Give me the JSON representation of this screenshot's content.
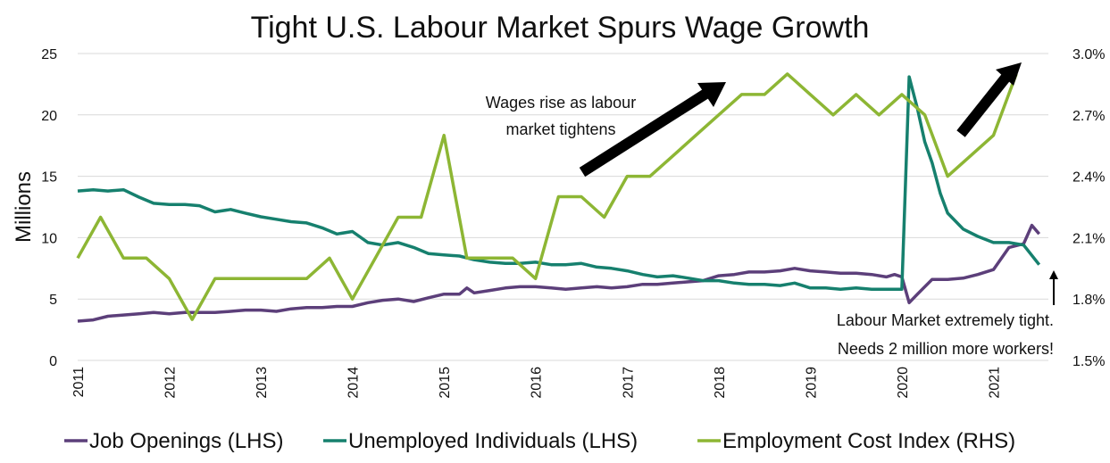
{
  "chart_data": {
    "type": "line",
    "title": "Tight U.S. Labour Market Spurs Wage Growth",
    "ylabel": "Millions",
    "ylim": [
      0,
      25
    ],
    "y2lim": [
      1.5,
      3.0
    ],
    "xlim": [
      2011,
      2021.6
    ],
    "grid": true,
    "yticks": [
      "0",
      "5",
      "10",
      "15",
      "20",
      "25"
    ],
    "y2ticks": [
      "1.5%",
      "1.8%",
      "2.1%",
      "2.4%",
      "2.7%",
      "3.0%"
    ],
    "xticks": [
      "2011",
      "2012",
      "2013",
      "2014",
      "2015",
      "2016",
      "2017",
      "2018",
      "2019",
      "2020",
      "2021"
    ],
    "legend_position": "bottom",
    "series": [
      {
        "name": "Job Openings (LHS)",
        "axis": "left",
        "color": "#5c3f7a",
        "x": [
          2011.0,
          2011.17,
          2011.33,
          2011.5,
          2011.67,
          2011.83,
          2012.0,
          2012.17,
          2012.33,
          2012.5,
          2012.67,
          2012.83,
          2013.0,
          2013.17,
          2013.33,
          2013.5,
          2013.67,
          2013.83,
          2014.0,
          2014.17,
          2014.33,
          2014.5,
          2014.67,
          2014.83,
          2015.0,
          2015.17,
          2015.25,
          2015.33,
          2015.5,
          2015.67,
          2015.83,
          2016.0,
          2016.17,
          2016.33,
          2016.5,
          2016.67,
          2016.83,
          2017.0,
          2017.17,
          2017.33,
          2017.5,
          2017.67,
          2017.83,
          2018.0,
          2018.17,
          2018.33,
          2018.5,
          2018.67,
          2018.83,
          2019.0,
          2019.17,
          2019.33,
          2019.5,
          2019.67,
          2019.83,
          2019.92,
          2020.0,
          2020.08,
          2020.17,
          2020.33,
          2020.5,
          2020.67,
          2020.83,
          2021.0,
          2021.17,
          2021.33,
          2021.42,
          2021.5
        ],
        "values": [
          3.2,
          3.3,
          3.6,
          3.7,
          3.8,
          3.9,
          3.8,
          3.9,
          3.9,
          3.9,
          4.0,
          4.1,
          4.1,
          4.0,
          4.2,
          4.3,
          4.3,
          4.4,
          4.4,
          4.7,
          4.9,
          5.0,
          4.8,
          5.1,
          5.4,
          5.4,
          5.9,
          5.5,
          5.7,
          5.9,
          6.0,
          6.0,
          5.9,
          5.8,
          5.9,
          6.0,
          5.9,
          6.0,
          6.2,
          6.2,
          6.3,
          6.4,
          6.5,
          6.9,
          7.0,
          7.2,
          7.2,
          7.3,
          7.5,
          7.3,
          7.2,
          7.1,
          7.1,
          7.0,
          6.8,
          7.0,
          6.8,
          4.7,
          5.4,
          6.6,
          6.6,
          6.7,
          7.0,
          7.4,
          9.2,
          9.5,
          11.0,
          10.3
        ]
      },
      {
        "name": "Unemployed Individuals (LHS)",
        "axis": "left",
        "color": "#16806e",
        "x": [
          2011.0,
          2011.17,
          2011.33,
          2011.5,
          2011.67,
          2011.83,
          2012.0,
          2012.17,
          2012.33,
          2012.5,
          2012.67,
          2012.83,
          2013.0,
          2013.17,
          2013.33,
          2013.5,
          2013.67,
          2013.83,
          2014.0,
          2014.17,
          2014.33,
          2014.5,
          2014.67,
          2014.83,
          2015.0,
          2015.17,
          2015.33,
          2015.5,
          2015.67,
          2015.83,
          2016.0,
          2016.17,
          2016.33,
          2016.5,
          2016.67,
          2016.83,
          2017.0,
          2017.17,
          2017.33,
          2017.5,
          2017.67,
          2017.83,
          2018.0,
          2018.17,
          2018.33,
          2018.5,
          2018.67,
          2018.83,
          2019.0,
          2019.17,
          2019.33,
          2019.5,
          2019.67,
          2019.83,
          2020.0,
          2020.08,
          2020.17,
          2020.25,
          2020.33,
          2020.42,
          2020.5,
          2020.67,
          2020.83,
          2021.0,
          2021.17,
          2021.33,
          2021.5
        ],
        "values": [
          13.8,
          13.9,
          13.8,
          13.9,
          13.3,
          12.8,
          12.7,
          12.7,
          12.6,
          12.1,
          12.3,
          12.0,
          11.7,
          11.5,
          11.3,
          11.2,
          10.8,
          10.3,
          10.5,
          9.6,
          9.4,
          9.6,
          9.2,
          8.7,
          8.6,
          8.5,
          8.2,
          8.0,
          7.9,
          7.9,
          8.0,
          7.8,
          7.8,
          7.9,
          7.6,
          7.5,
          7.3,
          7.0,
          6.8,
          6.9,
          6.7,
          6.5,
          6.5,
          6.3,
          6.2,
          6.2,
          6.1,
          6.3,
          5.9,
          5.9,
          5.8,
          5.9,
          5.8,
          5.8,
          5.8,
          23.1,
          20.5,
          17.8,
          16.1,
          13.6,
          12.0,
          10.7,
          10.1,
          9.6,
          9.6,
          9.4,
          7.8
        ]
      },
      {
        "name": "Employment Cost Index (RHS)",
        "axis": "right",
        "color": "#8db634",
        "x": [
          2011.0,
          2011.25,
          2011.5,
          2011.75,
          2012.0,
          2012.25,
          2012.5,
          2012.75,
          2013.0,
          2013.25,
          2013.5,
          2013.75,
          2014.0,
          2014.25,
          2014.5,
          2014.75,
          2015.0,
          2015.25,
          2015.5,
          2015.75,
          2016.0,
          2016.25,
          2016.5,
          2016.75,
          2017.0,
          2017.25,
          2017.5,
          2017.75,
          2018.0,
          2018.25,
          2018.5,
          2018.75,
          2019.0,
          2019.25,
          2019.5,
          2019.75,
          2020.0,
          2020.25,
          2020.5,
          2020.75,
          2021.0,
          2021.25
        ],
        "values": [
          2.0,
          2.2,
          2.0,
          2.0,
          1.9,
          1.7,
          1.9,
          1.9,
          1.9,
          1.9,
          1.9,
          2.0,
          1.8,
          2.0,
          2.2,
          2.2,
          2.6,
          2.0,
          2.0,
          2.0,
          1.9,
          2.3,
          2.3,
          2.2,
          2.4,
          2.4,
          2.5,
          2.6,
          2.7,
          2.8,
          2.8,
          2.9,
          2.8,
          2.7,
          2.8,
          2.7,
          2.8,
          2.7,
          2.4,
          2.5,
          2.6,
          2.9
        ]
      }
    ],
    "annotations": [
      {
        "lines": [
          "Wages rise as labour",
          "market tightens"
        ]
      },
      {
        "lines": [
          "Labour Market extremely tight.",
          "Needs 2 million more workers!"
        ]
      }
    ]
  }
}
